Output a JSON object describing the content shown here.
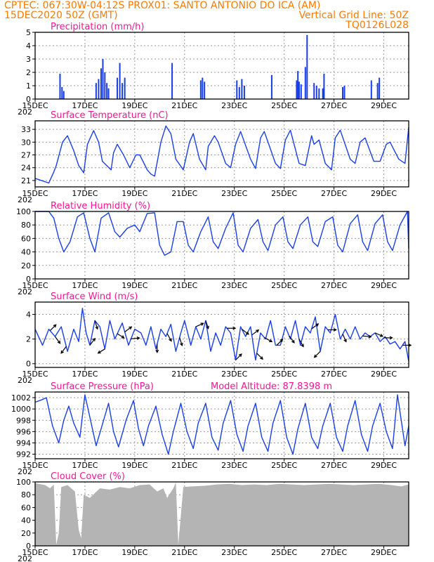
{
  "header": {
    "line1": "CPTEC:   067:30W-04:12S   PROX01: SANTO ANTONIO DO ICA (AM)",
    "line2_left": "15DEC2020 50Z (GMT)",
    "line2_right": "Vertical Grid Line: 50Z",
    "line3_right": "TQ0126L028"
  },
  "colors": {
    "header": "#ff7a00",
    "panel_title": "#ff1493",
    "series": "#1a3ee6",
    "cloud": "#b4b4b4",
    "arrow": "#000000"
  },
  "x_axis": {
    "tick_labels": [
      "15DEC",
      "17DEC",
      "19DEC",
      "21DEC",
      "23DEC",
      "25DEC",
      "27DEC",
      "29DEC"
    ],
    "year_label": "202",
    "range_days": [
      15,
      30
    ]
  },
  "chart_data": [
    {
      "type": "bar",
      "title": "Precipitation (mm/h)",
      "ylim": [
        0,
        5
      ],
      "yticks": [
        0,
        1,
        2,
        3,
        4,
        5
      ],
      "x": [
        16.0,
        16.08,
        16.15,
        17.45,
        17.55,
        17.65,
        17.72,
        17.8,
        17.88,
        17.95,
        18.3,
        18.4,
        18.5,
        18.6,
        20.5,
        21.65,
        21.72,
        21.8,
        23.1,
        23.2,
        23.3,
        23.4,
        24.5,
        25.5,
        25.55,
        25.6,
        25.68,
        25.85,
        25.92,
        26.2,
        26.3,
        26.4,
        26.55,
        26.6,
        27.35,
        27.42,
        28.5,
        28.75,
        28.82
      ],
      "values": [
        1.9,
        0.9,
        0.6,
        1.2,
        1.5,
        2.3,
        3.0,
        2.0,
        1.2,
        0.8,
        1.6,
        2.7,
        1.2,
        1.6,
        2.7,
        1.4,
        1.6,
        1.3,
        1.4,
        0.9,
        1.5,
        1.0,
        1.8,
        1.4,
        2.1,
        1.3,
        1.1,
        2.4,
        4.8,
        1.2,
        1.0,
        0.8,
        0.8,
        1.9,
        0.9,
        1.0,
        1.4,
        1.2,
        1.6
      ]
    },
    {
      "type": "line",
      "title": "Surface Temperature (nC)",
      "ylim": [
        19.5,
        35
      ],
      "yticks": [
        21,
        24,
        27,
        30,
        33
      ],
      "x": [
        15.0,
        15.55,
        15.75,
        15.85,
        16.1,
        16.3,
        16.55,
        16.75,
        16.95,
        17.1,
        17.35,
        17.55,
        17.7,
        18.05,
        18.15,
        18.3,
        18.55,
        18.8,
        19.05,
        19.2,
        19.5,
        19.65,
        19.8,
        20.05,
        20.25,
        20.45,
        20.65,
        20.95,
        21.2,
        21.35,
        21.6,
        21.85,
        21.95,
        22.2,
        22.35,
        22.65,
        22.85,
        23.05,
        23.25,
        23.65,
        23.85,
        24.05,
        24.2,
        24.65,
        24.85,
        25.05,
        25.25,
        25.6,
        25.85,
        26.1,
        26.2,
        26.4,
        26.65,
        26.9,
        27.05,
        27.25,
        27.65,
        27.85,
        28.05,
        28.25,
        28.6,
        28.85,
        29.1,
        29.25,
        29.6,
        29.85,
        30.0
      ],
      "values": [
        21.5,
        20.4,
        23.0,
        24.5,
        30.0,
        31.5,
        28.0,
        24.5,
        22.8,
        29.5,
        32.7,
        30.0,
        25.5,
        23.5,
        27.5,
        29.5,
        27.0,
        24.0,
        27.0,
        27.0,
        23.5,
        22.5,
        22.0,
        30.0,
        33.8,
        32.0,
        26.0,
        23.5,
        30.0,
        32.0,
        26.0,
        23.5,
        29.0,
        31.5,
        30.0,
        25.0,
        24.0,
        29.5,
        32.5,
        26.0,
        23.8,
        31.0,
        32.5,
        25.0,
        23.8,
        30.5,
        32.8,
        25.0,
        24.5,
        31.5,
        29.5,
        30.5,
        25.0,
        23.5,
        31.0,
        32.8,
        26.0,
        25.0,
        30.0,
        31.0,
        25.5,
        25.5,
        29.5,
        30.0,
        26.0,
        25.0,
        33.5
      ]
    },
    {
      "type": "line",
      "title": "Relative Humidity (%)",
      "ylim": [
        0,
        100
      ],
      "yticks": [
        0,
        20,
        40,
        60,
        80,
        100
      ],
      "x": [
        15.0,
        15.3,
        15.55,
        15.75,
        15.95,
        16.15,
        16.4,
        16.7,
        16.95,
        17.2,
        17.4,
        17.65,
        17.95,
        18.2,
        18.4,
        18.7,
        19.0,
        19.2,
        19.5,
        19.8,
        20.0,
        20.2,
        20.45,
        20.7,
        20.95,
        21.15,
        21.35,
        21.65,
        21.95,
        22.15,
        22.35,
        22.65,
        22.95,
        23.15,
        23.35,
        23.65,
        23.95,
        24.15,
        24.35,
        24.65,
        24.95,
        25.15,
        25.35,
        25.65,
        25.95,
        26.15,
        26.35,
        26.65,
        26.95,
        27.15,
        27.35,
        27.65,
        27.95,
        28.15,
        28.35,
        28.65,
        28.95,
        29.15,
        29.35,
        29.65,
        29.95,
        30.0
      ],
      "values": [
        100,
        100,
        100,
        90,
        60,
        40,
        55,
        92,
        98,
        60,
        40,
        90,
        98,
        70,
        62,
        75,
        80,
        70,
        97,
        98,
        50,
        35,
        40,
        85,
        85,
        50,
        40,
        70,
        92,
        55,
        45,
        75,
        98,
        50,
        40,
        75,
        88,
        55,
        42,
        80,
        92,
        55,
        45,
        80,
        92,
        55,
        48,
        85,
        92,
        50,
        40,
        82,
        95,
        55,
        42,
        82,
        95,
        55,
        42,
        80,
        100,
        45
      ]
    },
    {
      "type": "line",
      "title": "Surface Wind (m/s)",
      "ylim": [
        -0.3,
        5
      ],
      "yticks": [
        0,
        2,
        4
      ],
      "x": [
        15.0,
        15.3,
        15.55,
        15.8,
        16.05,
        16.3,
        16.55,
        16.75,
        16.9,
        17.05,
        17.2,
        17.4,
        17.6,
        17.8,
        18.0,
        18.2,
        18.5,
        18.75,
        19.0,
        19.25,
        19.45,
        19.65,
        19.85,
        20.05,
        20.25,
        20.45,
        20.65,
        20.85,
        21.0,
        21.25,
        21.45,
        21.65,
        21.85,
        22.05,
        22.25,
        22.45,
        22.65,
        22.85,
        23.05,
        23.25,
        23.45,
        23.65,
        23.85,
        24.05,
        24.25,
        24.45,
        24.65,
        24.85,
        25.05,
        25.25,
        25.45,
        25.65,
        25.85,
        26.05,
        26.25,
        26.45,
        26.65,
        26.85,
        27.05,
        27.25,
        27.45,
        27.65,
        27.85,
        28.05,
        28.25,
        28.45,
        28.65,
        28.85,
        29.05,
        29.25,
        29.45,
        29.65,
        29.85,
        30.0
      ],
      "values": [
        2.8,
        1.5,
        2.8,
        2.2,
        3.0,
        1.0,
        2.8,
        1.8,
        4.5,
        2.5,
        1.5,
        3.5,
        3.0,
        1.2,
        3.5,
        2.0,
        3.3,
        1.5,
        2.8,
        2.5,
        1.5,
        3.0,
        1.2,
        2.8,
        2.2,
        3.2,
        1.0,
        2.5,
        3.5,
        1.5,
        3.0,
        2.0,
        3.5,
        1.0,
        2.5,
        1.5,
        3.0,
        2.5,
        0.3,
        3.0,
        2.2,
        3.0,
        0.3,
        2.5,
        2.0,
        3.5,
        1.5,
        1.5,
        3.0,
        2.0,
        3.5,
        1.5,
        3.0,
        2.5,
        3.8,
        1.0,
        3.0,
        2.5,
        4.0,
        2.0,
        2.8,
        2.0,
        3.0,
        2.0,
        2.5,
        2.2,
        2.5,
        1.8,
        2.2,
        1.6,
        1.8,
        1.2,
        1.8,
        0.2
      ]
    },
    {
      "type": "line",
      "title": "Surface Pressure (hPa)",
      "subtitle": "Model Altitude: 87.8398 m",
      "ylim": [
        991.2,
        1003
      ],
      "yticks": [
        992,
        994,
        996,
        998,
        1000,
        1002
      ],
      "x": [
        15.0,
        15.25,
        15.45,
        15.7,
        15.95,
        16.15,
        16.35,
        16.55,
        16.8,
        17.0,
        17.25,
        17.45,
        17.65,
        17.95,
        18.15,
        18.35,
        18.65,
        18.95,
        19.15,
        19.35,
        19.55,
        19.85,
        20.1,
        20.35,
        20.55,
        20.85,
        21.1,
        21.35,
        21.55,
        21.85,
        22.1,
        22.35,
        22.55,
        22.85,
        23.1,
        23.35,
        23.55,
        23.85,
        24.1,
        24.35,
        24.55,
        24.85,
        25.1,
        25.35,
        25.55,
        25.85,
        26.1,
        26.35,
        26.55,
        26.85,
        27.1,
        27.35,
        27.55,
        27.85,
        28.1,
        28.35,
        28.55,
        28.85,
        29.1,
        29.35,
        29.55,
        29.85,
        30.0
      ],
      "values": [
        1001.2,
        1001.6,
        1002.0,
        997.0,
        994.0,
        998.0,
        1000.5,
        997.5,
        995.0,
        1002.5,
        997.5,
        993.5,
        996.5,
        1001.0,
        996.0,
        993.3,
        998.0,
        1001.5,
        996.5,
        993.5,
        997.0,
        1000.5,
        995.5,
        992.0,
        996.0,
        1001.0,
        996.0,
        993.0,
        997.5,
        1001.0,
        995.0,
        992.7,
        997.5,
        1001.5,
        995.5,
        992.5,
        997.0,
        1001.0,
        995.0,
        992.5,
        997.5,
        1001.5,
        995.0,
        992.0,
        996.5,
        1001.0,
        995.0,
        993.0,
        997.0,
        1001.0,
        995.0,
        992.5,
        997.0,
        1001.5,
        995.5,
        992.5,
        997.0,
        1001.0,
        996.0,
        993.0,
        1002.5,
        993.5,
        997.0
      ]
    },
    {
      "type": "area",
      "title": "Cloud Cover (%)",
      "ylim": [
        0,
        100
      ],
      "yticks": [
        0,
        20,
        40,
        60,
        80,
        100
      ],
      "x": [
        15.0,
        15.4,
        15.6,
        15.75,
        15.85,
        15.95,
        16.05,
        16.3,
        16.45,
        16.6,
        16.75,
        16.85,
        16.95,
        17.2,
        17.6,
        18.0,
        18.4,
        18.8,
        19.2,
        19.6,
        19.9,
        20.15,
        20.3,
        20.55,
        20.65,
        20.75,
        20.95,
        21.3,
        21.8,
        22.3,
        22.8,
        23.3,
        23.8,
        24.3,
        24.8,
        25.3,
        25.8,
        26.3,
        26.8,
        27.3,
        27.8,
        28.3,
        28.8,
        29.3,
        29.7,
        30.0
      ],
      "values": [
        98,
        95,
        90,
        96,
        2,
        20,
        92,
        95,
        90,
        85,
        25,
        12,
        80,
        75,
        90,
        88,
        92,
        90,
        95,
        96,
        85,
        90,
        75,
        90,
        99,
        2,
        92,
        93,
        94,
        96,
        97,
        95,
        96,
        95,
        97,
        96,
        95,
        96,
        97,
        96,
        95,
        96,
        97,
        95,
        93,
        96
      ]
    }
  ],
  "wind_arrows": [
    {
      "x": 15.6,
      "u": 0.7,
      "v": 0.7
    },
    {
      "x": 15.8,
      "u": 0.6,
      "v": -0.8
    },
    {
      "x": 16.25,
      "u": -0.6,
      "v": -0.8
    },
    {
      "x": 17.2,
      "u": 0.6,
      "v": 0.8
    },
    {
      "x": 17.4,
      "u": 0.3,
      "v": -1.0
    },
    {
      "x": 17.8,
      "u": -0.8,
      "v": -0.5
    },
    {
      "x": 18.3,
      "u": 0.8,
      "v": -0.5
    },
    {
      "x": 18.6,
      "u": 0.8,
      "v": 0.6
    },
    {
      "x": 18.85,
      "u": 1.0,
      "v": 0.1
    },
    {
      "x": 19.9,
      "u": 0.0,
      "v": -1.0
    },
    {
      "x": 20.3,
      "u": 0.5,
      "v": -0.9
    },
    {
      "x": 20.8,
      "u": 0.3,
      "v": -0.95
    },
    {
      "x": 21.45,
      "u": 0.9,
      "v": 0.4
    },
    {
      "x": 21.85,
      "u": 0.3,
      "v": -0.95
    },
    {
      "x": 22.7,
      "u": 1.0,
      "v": 0.0
    },
    {
      "x": 23.05,
      "u": 0.7,
      "v": 0.7
    },
    {
      "x": 23.3,
      "u": 0.8,
      "v": -0.6
    },
    {
      "x": 23.7,
      "u": 0.8,
      "v": 0.6
    },
    {
      "x": 23.9,
      "u": 0.7,
      "v": -0.7
    },
    {
      "x": 24.2,
      "u": 0.9,
      "v": -0.5
    },
    {
      "x": 24.7,
      "u": 0.7,
      "v": 0.7
    },
    {
      "x": 25.2,
      "u": 0.6,
      "v": -0.8
    },
    {
      "x": 25.6,
      "u": 0.5,
      "v": -0.9
    },
    {
      "x": 26.1,
      "u": 0.8,
      "v": 0.6
    },
    {
      "x": 26.45,
      "u": -0.7,
      "v": -0.7
    },
    {
      "x": 26.75,
      "u": 1.0,
      "v": 0.0
    },
    {
      "x": 27.35,
      "u": 0.4,
      "v": -0.9
    },
    {
      "x": 28.15,
      "u": 1.0,
      "v": -0.1
    },
    {
      "x": 28.65,
      "u": 0.9,
      "v": -0.4
    },
    {
      "x": 29.0,
      "u": 1.0,
      "v": 0.0
    },
    {
      "x": 29.75,
      "u": 1.0,
      "v": 0.0
    }
  ]
}
